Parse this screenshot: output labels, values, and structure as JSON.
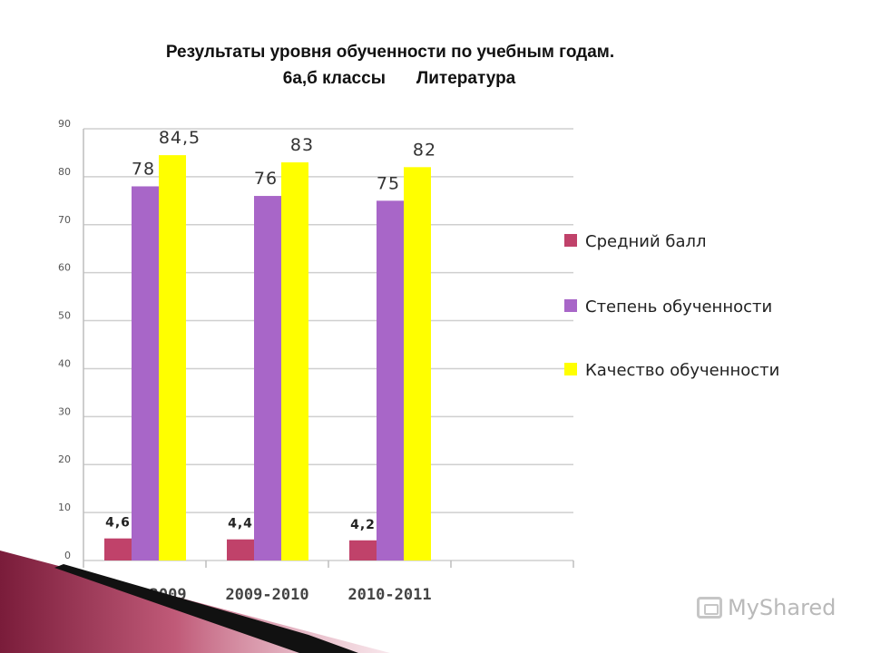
{
  "title": {
    "line1": "Результаты уровня обученности по учебным годам.",
    "line2_part1": "6а,б классы",
    "line2_part2": "Литература"
  },
  "chart_data": {
    "type": "bar",
    "categories": [
      "2008-2009",
      "2009-2010",
      "2010-2011"
    ],
    "series": [
      {
        "name": "Средний балл",
        "values": [
          4.6,
          4.4,
          4.2
        ],
        "labels": [
          "4,6",
          "4,4",
          "4,2"
        ],
        "color": "#c0426a"
      },
      {
        "name": "Степень обученности",
        "values": [
          78,
          76,
          75
        ],
        "labels": [
          "78",
          "76",
          "75"
        ],
        "color": "#a866c8"
      },
      {
        "name": "Качество обученности",
        "values": [
          84.5,
          83,
          82
        ],
        "labels": [
          "84,5",
          "83",
          "82"
        ],
        "color": "#ffff00"
      }
    ],
    "ylim": [
      0,
      90
    ],
    "yticks": [
      0,
      10,
      20,
      30,
      40,
      50,
      60,
      70,
      80,
      90
    ],
    "grid": true,
    "legend": "right"
  },
  "watermark": {
    "text": "MyShared",
    "icon": "presentation-icon"
  }
}
